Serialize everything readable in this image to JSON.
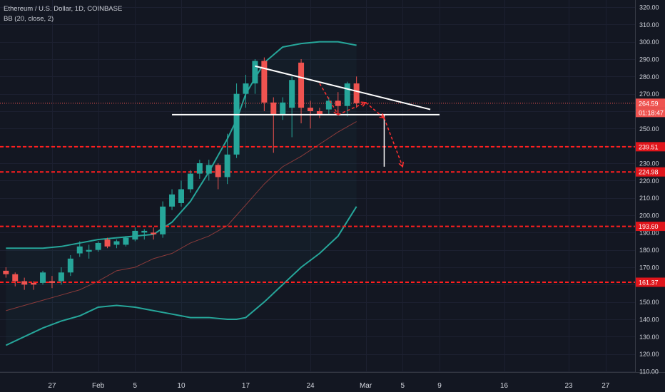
{
  "legend": {
    "symbol_line": "Ethereum / U.S. Dollar, 1D, COINBASE",
    "indicator_line": "BB (20, close, 2)"
  },
  "colors": {
    "background": "#131722",
    "bull": "#26a69a",
    "bear": "#ef5350",
    "bb_band": "#26a69a",
    "bb_basis": "#8a3a3a",
    "level_line": "#ff1e1e",
    "trendline": "#ffffff",
    "axis_text": "#d1d4dc",
    "grid": "#1c2030"
  },
  "chart_data": {
    "type": "candlestick",
    "title": "Ethereum / U.S. Dollar, 1D, COINBASE",
    "indicator": "BB (20, close, 2)",
    "y_axis": {
      "scale": "linear",
      "range": [
        110,
        320
      ],
      "ticks": [
        "110.00",
        "120.00",
        "130.00",
        "140.00",
        "150.00",
        "160.00",
        "170.00",
        "180.00",
        "190.00",
        "200.00",
        "210.00",
        "220.00",
        "230.00",
        "240.00",
        "250.00",
        "260.00",
        "270.00",
        "280.00",
        "290.00",
        "300.00",
        "310.00",
        "320.00"
      ]
    },
    "x_axis": {
      "first_date": "2020-01-22",
      "last_date": "2020-03-29",
      "ticks": [
        {
          "date": "2020-01-27",
          "label": "27"
        },
        {
          "date": "2020-02-01",
          "label": "Feb"
        },
        {
          "date": "2020-02-05",
          "label": "5"
        },
        {
          "date": "2020-02-10",
          "label": "10"
        },
        {
          "date": "2020-02-17",
          "label": "17"
        },
        {
          "date": "2020-02-24",
          "label": "24"
        },
        {
          "date": "2020-03-01",
          "label": "Mar"
        },
        {
          "date": "2020-03-05",
          "label": "5"
        },
        {
          "date": "2020-03-09",
          "label": "9"
        },
        {
          "date": "2020-03-16",
          "label": "16"
        },
        {
          "date": "2020-03-23",
          "label": "23"
        },
        {
          "date": "2020-03-27",
          "label": "27"
        }
      ]
    },
    "candles": [
      {
        "date": "2020-01-22",
        "o": 168,
        "h": 170,
        "l": 164,
        "c": 166
      },
      {
        "date": "2020-01-23",
        "o": 166,
        "h": 167,
        "l": 159,
        "c": 162
      },
      {
        "date": "2020-01-24",
        "o": 162,
        "h": 164,
        "l": 157,
        "c": 160
      },
      {
        "date": "2020-01-25",
        "o": 161,
        "h": 162,
        "l": 157,
        "c": 160
      },
      {
        "date": "2020-01-26",
        "o": 161,
        "h": 168,
        "l": 160,
        "c": 167
      },
      {
        "date": "2020-01-27",
        "o": 162,
        "h": 165,
        "l": 158,
        "c": 161
      },
      {
        "date": "2020-01-28",
        "o": 162,
        "h": 170,
        "l": 160,
        "c": 167
      },
      {
        "date": "2020-01-29",
        "o": 167,
        "h": 177,
        "l": 165,
        "c": 175
      },
      {
        "date": "2020-01-30",
        "o": 178,
        "h": 185,
        "l": 176,
        "c": 182
      },
      {
        "date": "2020-01-31",
        "o": 179,
        "h": 183,
        "l": 175,
        "c": 180
      },
      {
        "date": "2020-02-01",
        "o": 180,
        "h": 185,
        "l": 179,
        "c": 184
      },
      {
        "date": "2020-02-02",
        "o": 186,
        "h": 187,
        "l": 181,
        "c": 182
      },
      {
        "date": "2020-02-03",
        "o": 183,
        "h": 186,
        "l": 181,
        "c": 185
      },
      {
        "date": "2020-02-04",
        "o": 183,
        "h": 188,
        "l": 182,
        "c": 187
      },
      {
        "date": "2020-02-05",
        "o": 186,
        "h": 193,
        "l": 185,
        "c": 191
      },
      {
        "date": "2020-02-06",
        "o": 190,
        "h": 192,
        "l": 186,
        "c": 191
      },
      {
        "date": "2020-02-07",
        "o": 190,
        "h": 193,
        "l": 186,
        "c": 189
      },
      {
        "date": "2020-02-08",
        "o": 189,
        "h": 208,
        "l": 187,
        "c": 205
      },
      {
        "date": "2020-02-09",
        "o": 205,
        "h": 215,
        "l": 203,
        "c": 212
      },
      {
        "date": "2020-02-10",
        "o": 207,
        "h": 220,
        "l": 205,
        "c": 215
      },
      {
        "date": "2020-02-11",
        "o": 215,
        "h": 226,
        "l": 213,
        "c": 224
      },
      {
        "date": "2020-02-12",
        "o": 224,
        "h": 232,
        "l": 221,
        "c": 230
      },
      {
        "date": "2020-02-13",
        "o": 224,
        "h": 232,
        "l": 220,
        "c": 229
      },
      {
        "date": "2020-02-14",
        "o": 229,
        "h": 230,
        "l": 215,
        "c": 222
      },
      {
        "date": "2020-02-15",
        "o": 222,
        "h": 247,
        "l": 218,
        "c": 235
      },
      {
        "date": "2020-02-16",
        "o": 235,
        "h": 276,
        "l": 233,
        "c": 270
      },
      {
        "date": "2020-02-17",
        "o": 270,
        "h": 281,
        "l": 262,
        "c": 276
      },
      {
        "date": "2020-02-18",
        "o": 276,
        "h": 290,
        "l": 270,
        "c": 289
      },
      {
        "date": "2020-02-19",
        "o": 289,
        "h": 291,
        "l": 260,
        "c": 265
      },
      {
        "date": "2020-02-20",
        "o": 265,
        "h": 268,
        "l": 236,
        "c": 258
      },
      {
        "date": "2020-02-21",
        "o": 258,
        "h": 268,
        "l": 255,
        "c": 265
      },
      {
        "date": "2020-02-22",
        "o": 262,
        "h": 280,
        "l": 245,
        "c": 278
      },
      {
        "date": "2020-02-23",
        "o": 288,
        "h": 290,
        "l": 253,
        "c": 262
      },
      {
        "date": "2020-02-24",
        "o": 262,
        "h": 266,
        "l": 250,
        "c": 260
      },
      {
        "date": "2020-02-25",
        "o": 260,
        "h": 262,
        "l": 256,
        "c": 258
      },
      {
        "date": "2020-02-26",
        "o": 261,
        "h": 268,
        "l": 258,
        "c": 266
      },
      {
        "date": "2020-02-27",
        "o": 266,
        "h": 271,
        "l": 260,
        "c": 263
      },
      {
        "date": "2020-02-28",
        "o": 263,
        "h": 277,
        "l": 257,
        "c": 276
      },
      {
        "date": "2020-02-29",
        "o": 276,
        "h": 280,
        "l": 262,
        "c": 264.59
      }
    ],
    "bollinger": {
      "dates": [
        "2020-01-22",
        "2020-01-24",
        "2020-01-26",
        "2020-01-28",
        "2020-01-30",
        "2020-02-01",
        "2020-02-03",
        "2020-02-05",
        "2020-02-07",
        "2020-02-09",
        "2020-02-11",
        "2020-02-13",
        "2020-02-15",
        "2020-02-16",
        "2020-02-17",
        "2020-02-19",
        "2020-02-21",
        "2020-02-23",
        "2020-02-25",
        "2020-02-27",
        "2020-02-29"
      ],
      "upper": [
        181,
        181,
        181,
        182,
        184,
        186,
        187,
        188,
        189,
        196,
        208,
        225,
        244,
        255,
        270,
        288,
        297,
        299,
        300,
        300,
        298
      ],
      "middle": [
        145,
        148,
        151,
        154,
        157,
        162,
        168,
        170,
        175,
        178,
        184,
        188,
        194,
        200,
        206,
        218,
        228,
        234,
        241,
        248,
        254
      ],
      "lower": [
        125,
        130,
        135,
        139,
        142,
        147,
        148,
        147,
        145,
        143,
        141,
        141,
        140,
        140,
        141,
        150,
        160,
        170,
        178,
        188,
        205
      ]
    },
    "horizontal_levels": [
      {
        "value": 264.59,
        "label": "264.59",
        "style": "dotted",
        "kind": "last_price"
      },
      {
        "value": 239.51,
        "label": "239.51",
        "style": "dashed",
        "kind": "level"
      },
      {
        "value": 224.98,
        "label": "224.98",
        "style": "dashed",
        "kind": "level"
      },
      {
        "value": 193.6,
        "label": "193.60",
        "style": "dashed",
        "kind": "level"
      },
      {
        "value": 161.37,
        "label": "161.37",
        "style": "dashed",
        "kind": "level"
      }
    ],
    "countdown_label": "01:18:47",
    "drawings": {
      "support_line": {
        "from": {
          "date": "2020-02-09",
          "value": 258
        },
        "to": {
          "date": "2020-03-09",
          "value": 258
        }
      },
      "descending_trendline": {
        "from": {
          "date": "2020-02-18",
          "value": 286
        },
        "to": {
          "date": "2020-03-08",
          "value": 261
        }
      },
      "measured_move": {
        "from": {
          "date": "2020-03-03",
          "value": 258
        },
        "to": {
          "date": "2020-03-03",
          "value": 228
        }
      },
      "projection_path": [
        {
          "date": "2020-02-25",
          "value": 276
        },
        {
          "date": "2020-02-27",
          "value": 258
        },
        {
          "date": "2020-03-01",
          "value": 265
        },
        {
          "date": "2020-03-03",
          "value": 256
        },
        {
          "date": "2020-03-05",
          "value": 228
        }
      ]
    }
  }
}
